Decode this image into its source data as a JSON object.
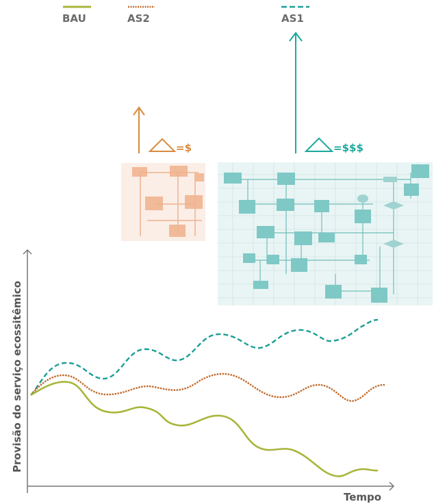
{
  "legend": [
    {
      "key": "bau",
      "label": "BAU",
      "color": "#a8b53a",
      "style": "solid"
    },
    {
      "key": "as2",
      "label": "AS2",
      "color": "#c06a2a",
      "style": "dotted"
    },
    {
      "key": "as1",
      "label": "AS1",
      "color": "#1a9e96",
      "style": "dashed"
    }
  ],
  "costs": {
    "as2": {
      "text": "=$",
      "color": "#d98a3c"
    },
    "as1": {
      "text": "=$$$",
      "color": "#1aa89c"
    }
  },
  "axes": {
    "y_label": "Provisão do serviço ecossitêmico",
    "x_label": "Tempo",
    "color": "#777777"
  },
  "diagrams": {
    "simple": {
      "tint": "#f7c8a8",
      "icon": "flowchart-orange"
    },
    "complex": {
      "tint": "#a8d8d6",
      "icon": "flowchart-teal"
    }
  }
}
